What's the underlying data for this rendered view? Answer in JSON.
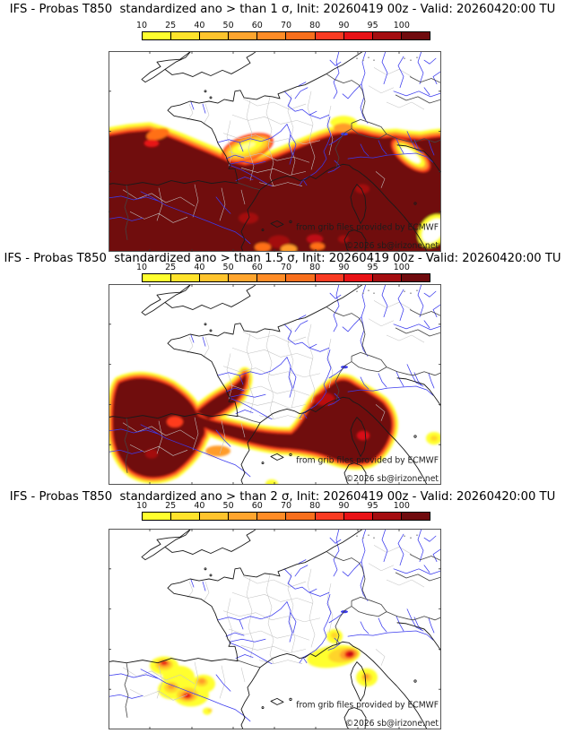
{
  "meta": {
    "model": "IFS",
    "parameter": "T850",
    "init": "20260419 00z",
    "valid": "20260420:00 TU"
  },
  "panels": [
    {
      "title": "IFS - Probas T850  standardized ano > than 1 σ, Init: 20260419 00z - Valid: 20260420:00 TU",
      "threshold": "> 1 σ"
    },
    {
      "title": "IFS - Probas T850  standardized ano > than 1.5 σ, Init: 20260419 00z - Valid: 20260420:00 TU",
      "threshold": "> 1.5 σ"
    },
    {
      "title": "IFS - Probas T850  standardized ano > than 2 σ, Init: 20260419 00z - Valid: 20260420:00 TU",
      "threshold": "> 2 σ"
    }
  ],
  "colorbar": {
    "labels": [
      "10",
      "25",
      "40",
      "50",
      "60",
      "70",
      "80",
      "90",
      "95",
      "100"
    ],
    "colors": [
      "#ffff2e",
      "#ffe32b",
      "#ffc42d",
      "#ffa52e",
      "#ff8c26",
      "#f86f1c",
      "#f93b22",
      "#e81216",
      "#a40d10",
      "#700b0e"
    ]
  },
  "credits": {
    "line1": "from grib files provided by ECMWF",
    "line2": "©2026 sb@irizone.net"
  }
}
